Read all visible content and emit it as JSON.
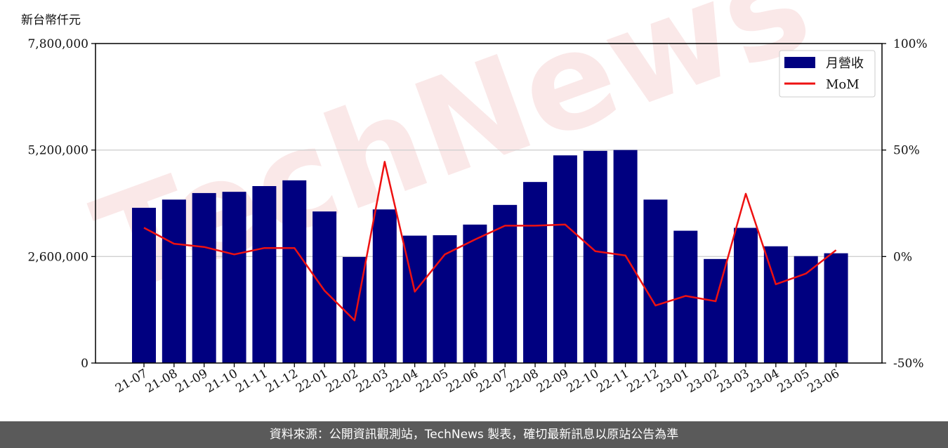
{
  "unit_label": "新台幣仟元",
  "footer_text": "資料來源：公開資訊觀測站，TechNews 製表，確切最新訊息以原站公告為準",
  "watermark_text": "TechNews",
  "colors": {
    "bar": "#000080",
    "line": "#ee1111",
    "grid": "#d0d0d0",
    "footer_bg": "#5a5a5a",
    "watermark": "#f6d6d6"
  },
  "chart_data": {
    "type": "bar",
    "categories": [
      "21-07",
      "21-08",
      "21-09",
      "21-10",
      "21-11",
      "21-12",
      "22-01",
      "22-02",
      "22-03",
      "22-04",
      "22-05",
      "22-06",
      "22-07",
      "22-08",
      "22-09",
      "22-10",
      "22-11",
      "22-12",
      "23-01",
      "23-02",
      "23-03",
      "23-04",
      "23-05",
      "23-06"
    ],
    "series": [
      {
        "name": "月營收",
        "axis": "left",
        "kind": "bar",
        "values": [
          3790000,
          3990000,
          4150000,
          4180000,
          4320000,
          4460000,
          3700000,
          2590000,
          3750000,
          3110000,
          3120000,
          3380000,
          3860000,
          4420000,
          5070000,
          5180000,
          5200000,
          3990000,
          3230000,
          2540000,
          3300000,
          2850000,
          2610000,
          2680000
        ]
      },
      {
        "name": "MoM",
        "axis": "right",
        "kind": "line",
        "values": [
          13.5,
          6,
          4.5,
          1,
          4,
          4,
          -16,
          -30,
          44.5,
          -16.5,
          1,
          8,
          14.5,
          14.5,
          15,
          2.5,
          0.5,
          -23,
          -18.5,
          -21,
          29.5,
          -13,
          -8,
          3
        ]
      }
    ],
    "left_axis": {
      "ylim": [
        0,
        7800000
      ],
      "ticks": [
        "0",
        "2,600,000",
        "5,200,000",
        "7,800,000"
      ],
      "tick_values": [
        0,
        2600000,
        5200000,
        7800000
      ]
    },
    "right_axis": {
      "ylim": [
        -50,
        100
      ],
      "ticks": [
        "-50%",
        "0%",
        "50%",
        "100%"
      ],
      "tick_values": [
        -50,
        0,
        50,
        100
      ]
    },
    "grid": "horizontal",
    "legend_position": "top-right"
  }
}
